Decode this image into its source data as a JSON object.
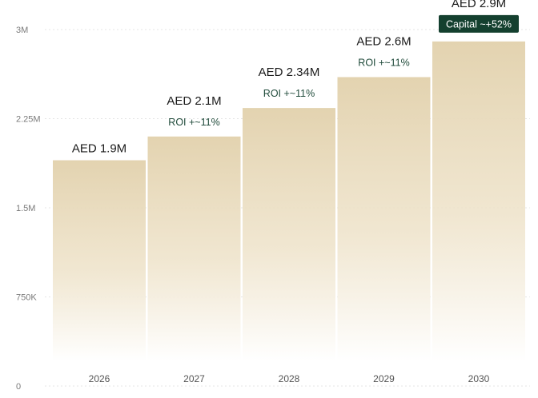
{
  "chart_data": {
    "type": "bar",
    "categories": [
      "2026",
      "2027",
      "2028",
      "2029",
      "2030"
    ],
    "values": [
      1900000,
      2100000,
      2340000,
      2600000,
      2900000
    ],
    "value_labels": [
      "AED 1.9M",
      "AED 2.1M",
      "AED 2.34M",
      "AED 2.6M",
      "AED 2.9M"
    ],
    "roi_labels": [
      "",
      "ROI +~11%",
      "ROI +~11%",
      "ROI +~11%",
      ""
    ],
    "capital_badge": "Capital ~+52%",
    "yticks": [
      0,
      750000,
      1500000,
      2250000,
      3000000
    ],
    "ytick_labels": [
      "0",
      "750K",
      "1.5M",
      "2.25M",
      "3M"
    ],
    "ylim": [
      0,
      3000000
    ],
    "grid": true,
    "colors": {
      "bar_top": "#e3d3b0",
      "bar_bottom": "#ffffff",
      "roi_text": "#1f4a3a",
      "badge_bg": "#14402f",
      "badge_text": "#ffffff",
      "grid": "#e4e4e4"
    }
  }
}
